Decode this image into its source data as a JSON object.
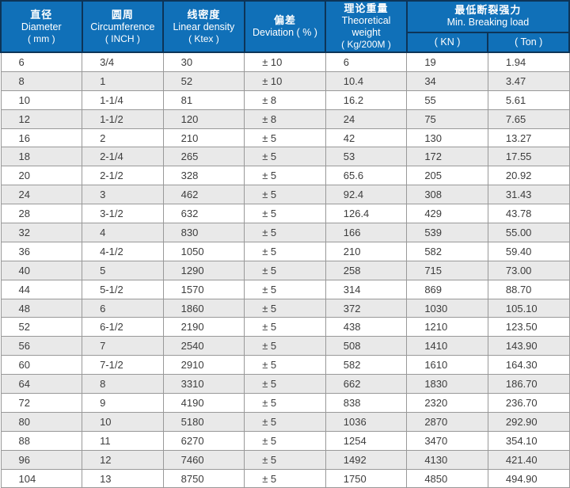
{
  "table": {
    "header": {
      "columns": [
        {
          "zh": "直径",
          "en": "Diameter",
          "unit": "( mm )"
        },
        {
          "zh": "圆周",
          "en": "Circumference",
          "unit": "( INCH )"
        },
        {
          "zh": "线密度",
          "en": "Linear density",
          "unit": "( Ktex )"
        },
        {
          "zh": "偏差",
          "en": "Deviation ( % )"
        },
        {
          "zh": "理论重量",
          "en": "Theoretical weight",
          "unit": "( Kg/200M )"
        },
        {
          "zh": "最低断裂强力",
          "en": "Min. Breaking load",
          "sub_units": [
            "( KN )",
            "( Ton )"
          ]
        }
      ]
    },
    "rows": [
      [
        "6",
        "3/4",
        "30",
        "± 10",
        "6",
        "19",
        "1.94"
      ],
      [
        "8",
        "1",
        "52",
        "± 10",
        "10.4",
        "34",
        "3.47"
      ],
      [
        "10",
        "1-1/4",
        "81",
        "± 8",
        "16.2",
        "55",
        "5.61"
      ],
      [
        "12",
        "1-1/2",
        "120",
        "± 8",
        "24",
        "75",
        "7.65"
      ],
      [
        "16",
        "2",
        "210",
        "± 5",
        "42",
        "130",
        "13.27"
      ],
      [
        "18",
        "2-1/4",
        "265",
        "± 5",
        "53",
        "172",
        "17.55"
      ],
      [
        "20",
        "2-1/2",
        "328",
        "± 5",
        "65.6",
        "205",
        "20.92"
      ],
      [
        "24",
        "3",
        "462",
        "± 5",
        "92.4",
        "308",
        "31.43"
      ],
      [
        "28",
        "3-1/2",
        "632",
        "± 5",
        "126.4",
        "429",
        "43.78"
      ],
      [
        "32",
        "4",
        "830",
        "± 5",
        "166",
        "539",
        "55.00"
      ],
      [
        "36",
        "4-1/2",
        "1050",
        "± 5",
        "210",
        "582",
        "59.40"
      ],
      [
        "40",
        "5",
        "1290",
        "± 5",
        "258",
        "715",
        "73.00"
      ],
      [
        "44",
        "5-1/2",
        "1570",
        "± 5",
        "314",
        "869",
        "88.70"
      ],
      [
        "48",
        "6",
        "1860",
        "± 5",
        "372",
        "1030",
        "105.10"
      ],
      [
        "52",
        "6-1/2",
        "2190",
        "± 5",
        "438",
        "1210",
        "123.50"
      ],
      [
        "56",
        "7",
        "2540",
        "± 5",
        "508",
        "1410",
        "143.90"
      ],
      [
        "60",
        "7-1/2",
        "2910",
        "± 5",
        "582",
        "1610",
        "164.30"
      ],
      [
        "64",
        "8",
        "3310",
        "± 5",
        "662",
        "1830",
        "186.70"
      ],
      [
        "72",
        "9",
        "4190",
        "± 5",
        "838",
        "2320",
        "236.70"
      ],
      [
        "80",
        "10",
        "5180",
        "± 5",
        "1036",
        "2870",
        "292.90"
      ],
      [
        "88",
        "11",
        "6270",
        "± 5",
        "1254",
        "3470",
        "354.10"
      ],
      [
        "96",
        "12",
        "7460",
        "± 5",
        "1492",
        "4130",
        "421.40"
      ],
      [
        "104",
        "13",
        "8750",
        "± 5",
        "1750",
        "4850",
        "494.90"
      ]
    ]
  },
  "colors": {
    "header_bg": "#1070b8",
    "header_border": "#0d3457",
    "row_alt_bg": "#e9e9e9",
    "grid": "#999999",
    "text": "#3d3d3d"
  }
}
